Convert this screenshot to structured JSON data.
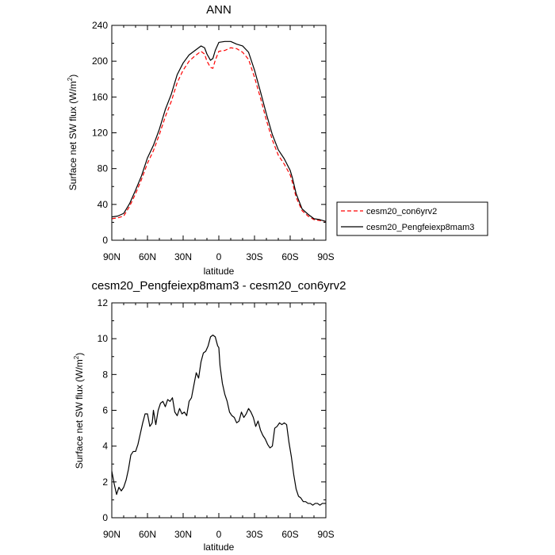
{
  "chart_data": [
    {
      "type": "line",
      "title": "ANN",
      "xlabel": "latitude",
      "ylabel_main": "Surface net SW flux (W/m",
      "ylabel_sup": "2",
      "ylabel_close": ")",
      "x_ticks": [
        {
          "value": 90,
          "label": "90N"
        },
        {
          "value": 60,
          "label": "60N"
        },
        {
          "value": 30,
          "label": "30N"
        },
        {
          "value": 0,
          "label": "0"
        },
        {
          "value": -30,
          "label": "30S"
        },
        {
          "value": -60,
          "label": "60S"
        },
        {
          "value": -90,
          "label": "90S"
        }
      ],
      "xlim": [
        90,
        -90
      ],
      "ylim": [
        0,
        240
      ],
      "y_ticks": [
        0,
        40,
        80,
        120,
        160,
        200,
        240
      ],
      "legend_position": "right",
      "series": [
        {
          "name": "cesm20_con6yrv2",
          "color": "#ff0000",
          "dashed": true,
          "x": [
            90,
            85,
            80,
            75,
            70,
            65,
            60,
            55,
            50,
            45,
            40,
            35,
            30,
            25,
            20,
            15,
            12,
            10,
            7,
            5,
            3,
            0,
            -5,
            -10,
            -15,
            -20,
            -25,
            -30,
            -35,
            -40,
            -45,
            -50,
            -55,
            -60,
            -62,
            -65,
            -70,
            -75,
            -80,
            -85,
            -90
          ],
          "values": [
            24,
            25,
            27,
            38,
            52,
            68,
            86,
            100,
            118,
            138,
            155,
            176,
            190,
            200,
            206,
            211,
            208,
            200,
            193,
            192,
            201,
            211,
            212,
            215,
            214,
            210,
            202,
            182,
            159,
            134,
            112,
            95,
            85,
            73,
            64,
            48,
            33,
            27,
            23,
            22,
            21
          ]
        },
        {
          "name": "cesm20_Pengfeiexp8mam3",
          "color": "#000000",
          "dashed": false,
          "x": [
            90,
            85,
            80,
            75,
            70,
            65,
            60,
            55,
            50,
            45,
            40,
            35,
            30,
            25,
            20,
            15,
            12,
            10,
            7,
            5,
            3,
            0,
            -5,
            -10,
            -15,
            -20,
            -25,
            -30,
            -35,
            -40,
            -45,
            -50,
            -55,
            -60,
            -62,
            -65,
            -70,
            -75,
            -80,
            -85,
            -90
          ],
          "values": [
            26,
            27,
            30,
            41,
            56,
            72,
            92,
            106,
            124,
            146,
            163,
            185,
            198,
            207,
            212,
            217,
            215,
            208,
            201,
            203,
            212,
            221,
            222,
            222,
            219,
            217,
            210,
            190,
            166,
            141,
            118,
            101,
            91,
            78,
            69,
            52,
            35,
            29,
            24,
            23,
            21
          ]
        }
      ]
    },
    {
      "type": "line",
      "title": "cesm20_Pengfeiexp8mam3 - cesm20_con6yrv2",
      "xlabel": "latitude",
      "ylabel_main": "Surface net SW flux (W/m",
      "ylabel_sup": "2",
      "ylabel_close": ")",
      "x_ticks": [
        {
          "value": 90,
          "label": "90N"
        },
        {
          "value": 60,
          "label": "60N"
        },
        {
          "value": 30,
          "label": "30N"
        },
        {
          "value": 0,
          "label": "0"
        },
        {
          "value": -30,
          "label": "30S"
        },
        {
          "value": -60,
          "label": "60S"
        },
        {
          "value": -90,
          "label": "90S"
        }
      ],
      "xlim": [
        90,
        -90
      ],
      "ylim": [
        0,
        12
      ],
      "y_ticks": [
        0,
        2,
        4,
        6,
        8,
        10,
        12
      ],
      "series": [
        {
          "color": "#000000",
          "x": [
            90,
            88,
            86,
            84,
            82,
            80,
            78,
            76,
            74,
            72,
            70,
            68,
            66,
            64,
            62,
            60,
            58,
            56,
            55,
            53,
            51,
            49,
            47,
            45,
            43,
            41,
            39,
            37,
            35,
            33,
            31,
            29,
            27,
            25,
            23,
            21,
            19,
            17,
            15,
            13,
            11,
            9,
            7,
            5,
            3,
            1,
            0,
            -1,
            -3,
            -5,
            -7,
            -9,
            -11,
            -13,
            -15,
            -17,
            -19,
            -21,
            -23,
            -25,
            -27,
            -29,
            -31,
            -33,
            -35,
            -37,
            -39,
            -41,
            -43,
            -45,
            -47,
            -49,
            -51,
            -53,
            -55,
            -57,
            -59,
            -61,
            -63,
            -65,
            -67,
            -69,
            -71,
            -73,
            -75,
            -77,
            -79,
            -81,
            -83,
            -85,
            -87,
            -90
          ],
          "values": [
            2.6,
            1.9,
            1.3,
            1.7,
            1.5,
            1.7,
            2.1,
            2.7,
            3.5,
            3.7,
            3.7,
            4.1,
            4.7,
            5.3,
            5.8,
            5.8,
            5.1,
            5.3,
            6.0,
            5.2,
            6.0,
            6.4,
            6.5,
            6.2,
            6.6,
            6.5,
            6.7,
            5.9,
            5.7,
            6.1,
            5.8,
            5.9,
            5.7,
            6.5,
            6.7,
            7.4,
            8.1,
            7.8,
            8.7,
            9.2,
            9.3,
            9.6,
            10.1,
            10.2,
            10.1,
            9.6,
            9.5,
            8.5,
            7.5,
            6.9,
            6.5,
            5.9,
            5.7,
            5.6,
            5.3,
            5.4,
            5.9,
            5.6,
            5.8,
            6.1,
            5.9,
            5.6,
            5.1,
            5.4,
            4.9,
            4.6,
            4.4,
            4.1,
            3.9,
            4.0,
            5.0,
            5.1,
            5.3,
            5.2,
            5.3,
            5.2,
            4.2,
            3.4,
            2.4,
            1.6,
            1.2,
            1.1,
            0.9,
            0.9,
            0.8,
            0.8,
            0.7,
            0.8,
            0.8,
            0.7,
            0.8,
            0.8
          ]
        }
      ]
    }
  ]
}
